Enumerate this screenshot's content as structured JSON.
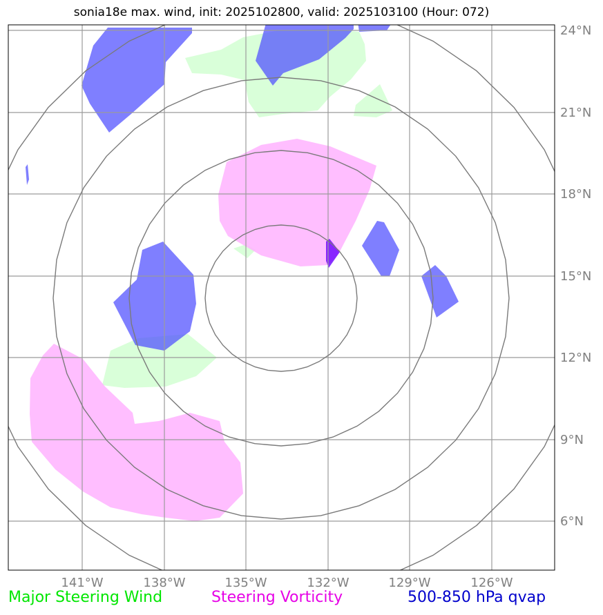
{
  "title": "sonia18e max. wind, init: 2025102800, valid: 2025103100 (Hour: 072)",
  "map": {
    "lat_labels": [
      "24°N",
      "21°N",
      "18°N",
      "15°N",
      "12°N",
      "9°N",
      "6°N"
    ],
    "lon_labels": [
      "141°W",
      "138°W",
      "135°W",
      "132°W",
      "129°W",
      "126°W"
    ],
    "colors": {
      "grid": "#9b9b9b",
      "rings": "#7a7a7a",
      "steering_wind": "#ccffcc",
      "steering_vorticity": "#ffb3ff",
      "qvap": "#4d4dff",
      "tick_label": "#808080"
    }
  },
  "legend": {
    "wind": {
      "label": "Major Steering Wind",
      "color": "#00e600"
    },
    "vorticity": {
      "label": "Steering Vorticity",
      "color": "#e600e6"
    },
    "qvap": {
      "label": "500-850 hPa qvap",
      "color": "#0000cc"
    }
  }
}
